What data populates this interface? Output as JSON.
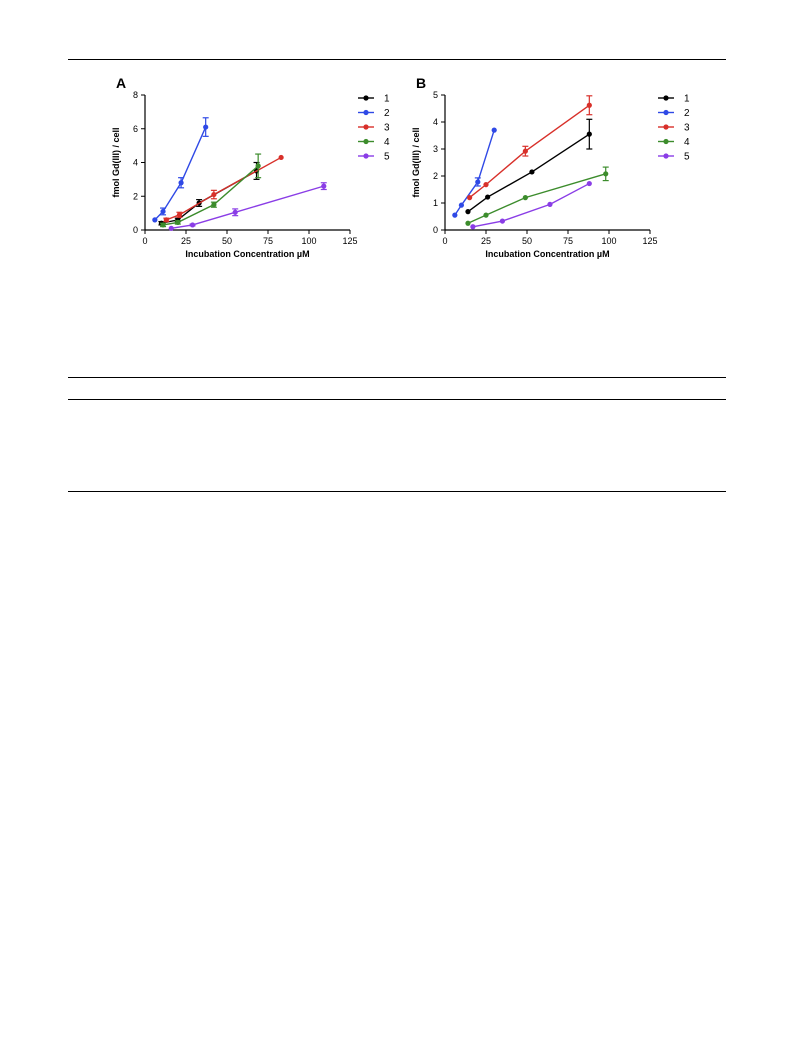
{
  "chart_data": [
    {
      "type": "line",
      "panel_label": "A",
      "xlabel": "Incubation Concentration µM",
      "ylabel": "fmol Gd(III) / cell",
      "xlim": [
        0,
        125
      ],
      "ylim": [
        0,
        8
      ],
      "xticks": [
        0,
        25,
        50,
        75,
        100,
        125
      ],
      "yticks": [
        0,
        2,
        4,
        6,
        8
      ],
      "legend_position": "right",
      "series": [
        {
          "name": "1",
          "color": "#000000",
          "x": [
            10,
            20,
            33,
            68
          ],
          "y": [
            0.4,
            0.6,
            1.6,
            3.5
          ],
          "err": [
            0.1,
            0.1,
            0.2,
            0.5
          ]
        },
        {
          "name": "2",
          "color": "#2f49e6",
          "x": [
            6,
            11,
            22,
            37
          ],
          "y": [
            0.6,
            1.1,
            2.8,
            6.1
          ],
          "err": [
            0,
            0.2,
            0.3,
            0.55
          ]
        },
        {
          "name": "3",
          "color": "#d8302a",
          "x": [
            13,
            21,
            42,
            83
          ],
          "y": [
            0.6,
            0.9,
            2.1,
            4.3
          ],
          "err": [
            0.1,
            0.15,
            0.25,
            0
          ]
        },
        {
          "name": "4",
          "color": "#3c8c2c",
          "x": [
            11,
            20,
            42,
            69
          ],
          "y": [
            0.3,
            0.45,
            1.5,
            3.8
          ],
          "err": [
            0.1,
            0.1,
            0.15,
            0.7
          ]
        },
        {
          "name": "5",
          "color": "#8a3de6",
          "x": [
            16,
            29,
            55,
            109
          ],
          "y": [
            0.1,
            0.3,
            1.05,
            2.6
          ],
          "err": [
            0,
            0.05,
            0.2,
            0.2
          ]
        }
      ]
    },
    {
      "type": "line",
      "panel_label": "B",
      "xlabel": "Incubation Concentration µM",
      "ylabel": "fmol Gd(III) / cell",
      "xlim": [
        0,
        125
      ],
      "ylim": [
        0,
        5
      ],
      "xticks": [
        0,
        25,
        50,
        75,
        100,
        125
      ],
      "yticks": [
        0,
        1,
        2,
        3,
        4,
        5
      ],
      "legend_position": "right",
      "series": [
        {
          "name": "1",
          "color": "#000000",
          "x": [
            14,
            26,
            53,
            88
          ],
          "y": [
            0.68,
            1.22,
            2.15,
            3.55
          ],
          "err": [
            0,
            0,
            0,
            0.55
          ]
        },
        {
          "name": "2",
          "color": "#2f49e6",
          "x": [
            6,
            10,
            20,
            30
          ],
          "y": [
            0.55,
            0.92,
            1.78,
            3.7
          ],
          "err": [
            0,
            0,
            0.15,
            0
          ]
        },
        {
          "name": "3",
          "color": "#d8302a",
          "x": [
            15,
            25,
            49,
            88
          ],
          "y": [
            1.2,
            1.68,
            2.92,
            4.62
          ],
          "err": [
            0,
            0,
            0.18,
            0.35
          ]
        },
        {
          "name": "4",
          "color": "#3c8c2c",
          "x": [
            14,
            25,
            49,
            98
          ],
          "y": [
            0.25,
            0.55,
            1.2,
            2.08
          ],
          "err": [
            0,
            0,
            0,
            0.25
          ]
        },
        {
          "name": "5",
          "color": "#8a3de6",
          "x": [
            17,
            35,
            64,
            88
          ],
          "y": [
            0.12,
            0.33,
            0.95,
            1.72
          ],
          "err": [
            0,
            0,
            0,
            0
          ]
        }
      ]
    }
  ]
}
